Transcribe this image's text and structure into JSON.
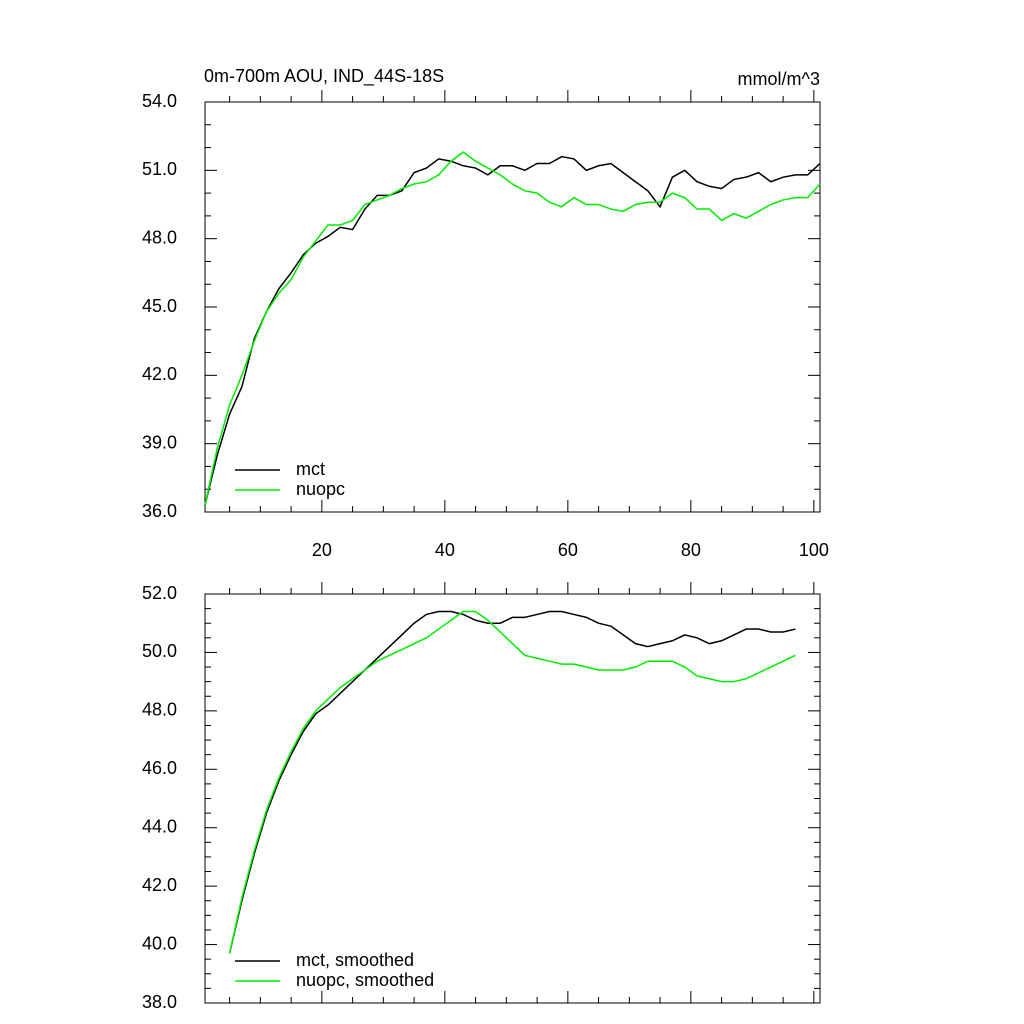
{
  "chart_data": [
    {
      "type": "line",
      "title": "0m-700m AOU, IND_44S-18S",
      "y_units": "mmol/m^3",
      "x": [
        1,
        3,
        5,
        7,
        9,
        11,
        13,
        15,
        17,
        19,
        21,
        23,
        25,
        27,
        29,
        31,
        33,
        35,
        37,
        39,
        41,
        43,
        45,
        47,
        49,
        51,
        53,
        55,
        57,
        59,
        61,
        63,
        65,
        67,
        69,
        71,
        73,
        75,
        77,
        79,
        81,
        83,
        85,
        87,
        89,
        91,
        93,
        95,
        97,
        99,
        101
      ],
      "series": [
        {
          "name": "mct",
          "color": "#000000",
          "values": [
            36.3,
            38.5,
            40.3,
            41.5,
            43.6,
            44.8,
            45.8,
            46.5,
            47.3,
            47.8,
            48.1,
            48.5,
            48.4,
            49.3,
            49.9,
            49.9,
            50.1,
            50.9,
            51.1,
            51.5,
            51.4,
            51.2,
            51.1,
            50.8,
            51.2,
            51.2,
            51.0,
            51.3,
            51.3,
            51.6,
            51.5,
            51.0,
            51.2,
            51.3,
            50.9,
            50.5,
            50.1,
            49.4,
            50.7,
            51.0,
            50.5,
            50.3,
            50.2,
            50.6,
            50.7,
            50.9,
            50.5,
            50.7,
            50.8,
            50.8,
            51.3
          ]
        },
        {
          "name": "nuopc",
          "color": "#00ee00",
          "values": [
            36.3,
            38.8,
            40.7,
            42.0,
            43.5,
            44.8,
            45.6,
            46.2,
            47.2,
            47.9,
            48.6,
            48.6,
            48.8,
            49.5,
            49.7,
            49.9,
            50.2,
            50.4,
            50.5,
            50.8,
            51.4,
            51.8,
            51.4,
            51.1,
            50.8,
            50.4,
            50.1,
            50.0,
            49.6,
            49.4,
            49.8,
            49.5,
            49.5,
            49.3,
            49.2,
            49.5,
            49.6,
            49.6,
            50.0,
            49.8,
            49.3,
            49.3,
            48.8,
            49.1,
            48.9,
            49.2,
            49.5,
            49.7,
            49.8,
            49.8,
            50.4
          ]
        }
      ],
      "xlim": [
        1,
        101
      ],
      "xticks": [
        20,
        40,
        60,
        80,
        100
      ],
      "ylim": [
        36,
        54
      ],
      "yticks": [
        {
          "value": 36,
          "label": "36.0"
        },
        {
          "value": 39,
          "label": "39.0"
        },
        {
          "value": 42,
          "label": "42.0"
        },
        {
          "value": 45,
          "label": "45.0"
        },
        {
          "value": 48,
          "label": "48.0"
        },
        {
          "value": 51,
          "label": "51.0"
        },
        {
          "value": 54,
          "label": "54.0"
        }
      ],
      "legend": "lower left"
    },
    {
      "type": "line",
      "x": [
        5,
        7,
        9,
        11,
        13,
        15,
        17,
        19,
        21,
        23,
        25,
        27,
        29,
        31,
        33,
        35,
        37,
        39,
        41,
        43,
        45,
        47,
        49,
        51,
        53,
        55,
        57,
        59,
        61,
        63,
        65,
        67,
        69,
        71,
        73,
        75,
        77,
        79,
        81,
        83,
        85,
        87,
        89,
        91,
        93,
        95,
        97
      ],
      "series": [
        {
          "name": "mct, smoothed",
          "color": "#000000",
          "values": [
            39.7,
            41.5,
            43.1,
            44.5,
            45.6,
            46.5,
            47.3,
            47.9,
            48.2,
            48.6,
            49.0,
            49.4,
            49.8,
            50.2,
            50.6,
            51.0,
            51.3,
            51.4,
            51.4,
            51.3,
            51.1,
            51.0,
            51.0,
            51.2,
            51.2,
            51.3,
            51.4,
            51.4,
            51.3,
            51.2,
            51.0,
            50.9,
            50.6,
            50.3,
            50.2,
            50.3,
            50.4,
            50.6,
            50.5,
            50.3,
            50.4,
            50.6,
            50.8,
            50.8,
            50.7,
            50.7,
            50.8
          ]
        },
        {
          "name": "nuopc, smoothed",
          "color": "#00ee00",
          "values": [
            39.7,
            41.6,
            43.2,
            44.6,
            45.7,
            46.6,
            47.4,
            48.0,
            48.4,
            48.8,
            49.1,
            49.4,
            49.7,
            49.9,
            50.1,
            50.3,
            50.5,
            50.8,
            51.1,
            51.4,
            51.4,
            51.1,
            50.7,
            50.3,
            49.9,
            49.8,
            49.7,
            49.6,
            49.6,
            49.5,
            49.4,
            49.4,
            49.4,
            49.5,
            49.7,
            49.7,
            49.7,
            49.5,
            49.2,
            49.1,
            49.0,
            49.0,
            49.1,
            49.3,
            49.5,
            49.7,
            49.9
          ]
        }
      ],
      "xlim": [
        1,
        101
      ],
      "ylim": [
        38,
        52
      ],
      "yticks": [
        {
          "value": 38,
          "label": "38.0"
        },
        {
          "value": 40,
          "label": "40.0"
        },
        {
          "value": 42,
          "label": "42.0"
        },
        {
          "value": 44,
          "label": "44.0"
        },
        {
          "value": 46,
          "label": "46.0"
        },
        {
          "value": 48,
          "label": "48.0"
        },
        {
          "value": 50,
          "label": "50.0"
        },
        {
          "value": 52,
          "label": "52.0"
        }
      ],
      "legend": "lower left"
    }
  ]
}
